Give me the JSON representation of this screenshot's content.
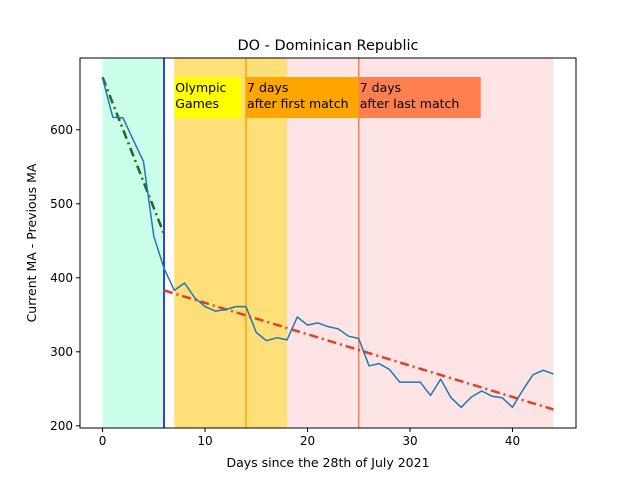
{
  "chart_data": {
    "type": "line",
    "title": "DO - Dominican Republic",
    "xlabel": "Days since the 28th of July 2021",
    "ylabel": "Current MA - Previous MA",
    "xlim": [
      -2.2,
      46.2
    ],
    "ylim": [
      197,
      697
    ],
    "xticks": [
      0,
      10,
      20,
      30,
      40
    ],
    "yticks": [
      200,
      300,
      400,
      500,
      600
    ],
    "grid": false,
    "bands": [
      {
        "x0": 0,
        "x1": 6,
        "color": "#ccffe9"
      },
      {
        "x0": 7,
        "x1": 18,
        "color": "#ffdf78"
      },
      {
        "x0": 18,
        "x1": 44,
        "color": "#fee4e4"
      }
    ],
    "vlines": [
      {
        "x": 6,
        "color": "#0000cc"
      },
      {
        "x": 14,
        "color": "#ffa500"
      },
      {
        "x": 25,
        "color": "#ff7f50"
      }
    ],
    "annotations": [
      {
        "lines": [
          "Olympic",
          "Games"
        ],
        "x": 7,
        "bg": "#ffff00"
      },
      {
        "lines": [
          "7 days",
          "after first match"
        ],
        "x": 14,
        "bg": "#ffa500"
      },
      {
        "lines": [
          "7 days",
          "after last match"
        ],
        "x": 25,
        "bg": "#ff7f50"
      }
    ],
    "series": [
      {
        "color": "#1f77b4",
        "x": [
          0,
          1,
          2,
          3,
          4,
          5,
          6,
          7,
          8,
          9,
          10,
          11,
          12,
          13,
          14,
          15,
          16,
          17,
          18,
          19,
          20,
          21,
          22,
          23,
          24,
          25,
          26,
          27,
          28,
          29,
          30,
          31,
          32,
          33,
          34,
          35,
          36,
          37,
          38,
          39,
          40,
          41,
          42,
          43,
          44
        ],
        "y": [
          670,
          617,
          616,
          586,
          557,
          456,
          413,
          383,
          393,
          373,
          361,
          355,
          357,
          361,
          361,
          326,
          315,
          319,
          316,
          347,
          336,
          339,
          334,
          331,
          321,
          318,
          281,
          284,
          276,
          259,
          259,
          259,
          241,
          263,
          238,
          225,
          239,
          247,
          240,
          238,
          225,
          248,
          269,
          275,
          270
        ]
      }
    ],
    "trendlines": [
      {
        "color": "#1e6b1e",
        "x": [
          0,
          6
        ],
        "y": [
          671,
          459
        ]
      },
      {
        "color": "#e0402a",
        "x": [
          6,
          44
        ],
        "y": [
          383,
          222
        ]
      }
    ]
  }
}
